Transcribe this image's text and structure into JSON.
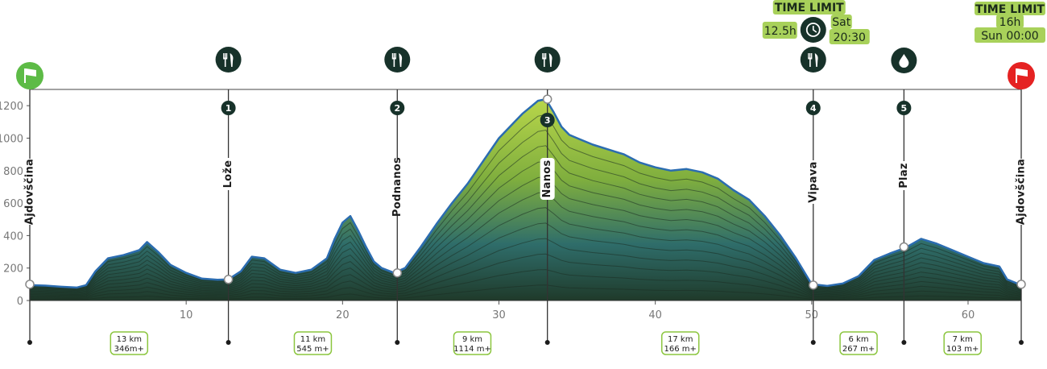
{
  "chart_data": {
    "type": "area",
    "title": "",
    "xlabel": "",
    "ylabel": "",
    "xlim": [
      0,
      63.4
    ],
    "ylim": [
      0,
      1300
    ],
    "x_ticks": [
      10,
      20,
      30,
      40,
      50,
      60
    ],
    "y_ticks": [
      0,
      200,
      400,
      600,
      800,
      1000,
      1200
    ],
    "grid": false,
    "series": [
      {
        "x": [
          0,
          1,
          2,
          3,
          3.6,
          4.2,
          5,
          6,
          7,
          7.5,
          8.2,
          9,
          10,
          11,
          12,
          12.7,
          13.5,
          14.2,
          15,
          16,
          17,
          18,
          19,
          19.5,
          20,
          20.5,
          21,
          21.5,
          22,
          22.5,
          23.3,
          24,
          25,
          26,
          27,
          28,
          29,
          30,
          31,
          31.5,
          32,
          32.5,
          33,
          33.5,
          34,
          34.5,
          35,
          36,
          37,
          38,
          39,
          40,
          41,
          42,
          43,
          44,
          45,
          46,
          47,
          48,
          49,
          50,
          51,
          52,
          53,
          54,
          55,
          56,
          57,
          58,
          59,
          60,
          61,
          62,
          62.5,
          63.4
        ],
        "y": [
          95,
          92,
          85,
          80,
          95,
          180,
          260,
          280,
          310,
          360,
          300,
          220,
          170,
          135,
          128,
          130,
          180,
          270,
          260,
          190,
          170,
          190,
          260,
          380,
          480,
          520,
          430,
          330,
          240,
          200,
          170,
          200,
          330,
          470,
          600,
          720,
          860,
          1000,
          1100,
          1150,
          1190,
          1230,
          1240,
          1160,
          1070,
          1020,
          1000,
          960,
          930,
          900,
          850,
          820,
          800,
          810,
          790,
          750,
          680,
          620,
          520,
          400,
          260,
          100,
          90,
          105,
          150,
          250,
          290,
          325,
          380,
          350,
          310,
          270,
          230,
          210,
          130,
          95
        ]
      }
    ],
    "start_flag": {
      "km": 0,
      "color": "#5dbb46"
    },
    "finish_flag": {
      "km": 63.4,
      "color": "#e52222"
    },
    "checkpoints": [
      {
        "km": 0,
        "name": "Ajdovščina",
        "number": "",
        "icon": "",
        "elev": 100
      },
      {
        "km": 12.7,
        "name": "Lože",
        "number": "1",
        "icon": "food-icon",
        "elev": 130
      },
      {
        "km": 23.5,
        "name": "Podnanos",
        "number": "2",
        "icon": "food-icon",
        "elev": 170
      },
      {
        "km": 33.1,
        "name": "Nanos",
        "number": "3",
        "icon": "food-icon",
        "elev": 1240
      },
      {
        "km": 50.1,
        "name": "Vipava",
        "number": "4",
        "icon": "food-icon",
        "elev": 95
      },
      {
        "km": 55.9,
        "name": "Plaz",
        "number": "5",
        "icon": "water-drop-icon",
        "elev": 330
      },
      {
        "km": 63.4,
        "name": "Ajdovščina",
        "number": "",
        "icon": "",
        "elev": 100
      }
    ],
    "segments": [
      {
        "km_center": 6.35,
        "distance": "13 km",
        "climb": "346m+"
      },
      {
        "km_center": 18.1,
        "distance": "11 km",
        "climb": "545 m+"
      },
      {
        "km_center": 28.3,
        "distance": "9 km",
        "climb": "1114 m+"
      },
      {
        "km_center": 41.6,
        "distance": "17 km",
        "climb": "166 m+"
      },
      {
        "km_center": 53.0,
        "distance": "6 km",
        "climb": "267 m+"
      },
      {
        "km_center": 59.65,
        "distance": "7 km",
        "climb": "103 m+"
      }
    ],
    "time_limits": [
      {
        "km": 50.1,
        "title": "TIME LIMIT",
        "duration": "12.5h",
        "day": "Sat",
        "time": "20:30"
      },
      {
        "km": 63.4,
        "title": "TIME LIMIT",
        "duration": "16h",
        "day_time": "Sun 00:00"
      }
    ],
    "colors": {
      "line": "#2b6cb0",
      "fill_top": "#b8d64a",
      "fill_mid": "#2f6d6a",
      "fill_bottom": "#1f3a2a",
      "marker": "#17322a",
      "badge_bg": "#a8d15a",
      "segment_border": "#8cc63f"
    }
  }
}
